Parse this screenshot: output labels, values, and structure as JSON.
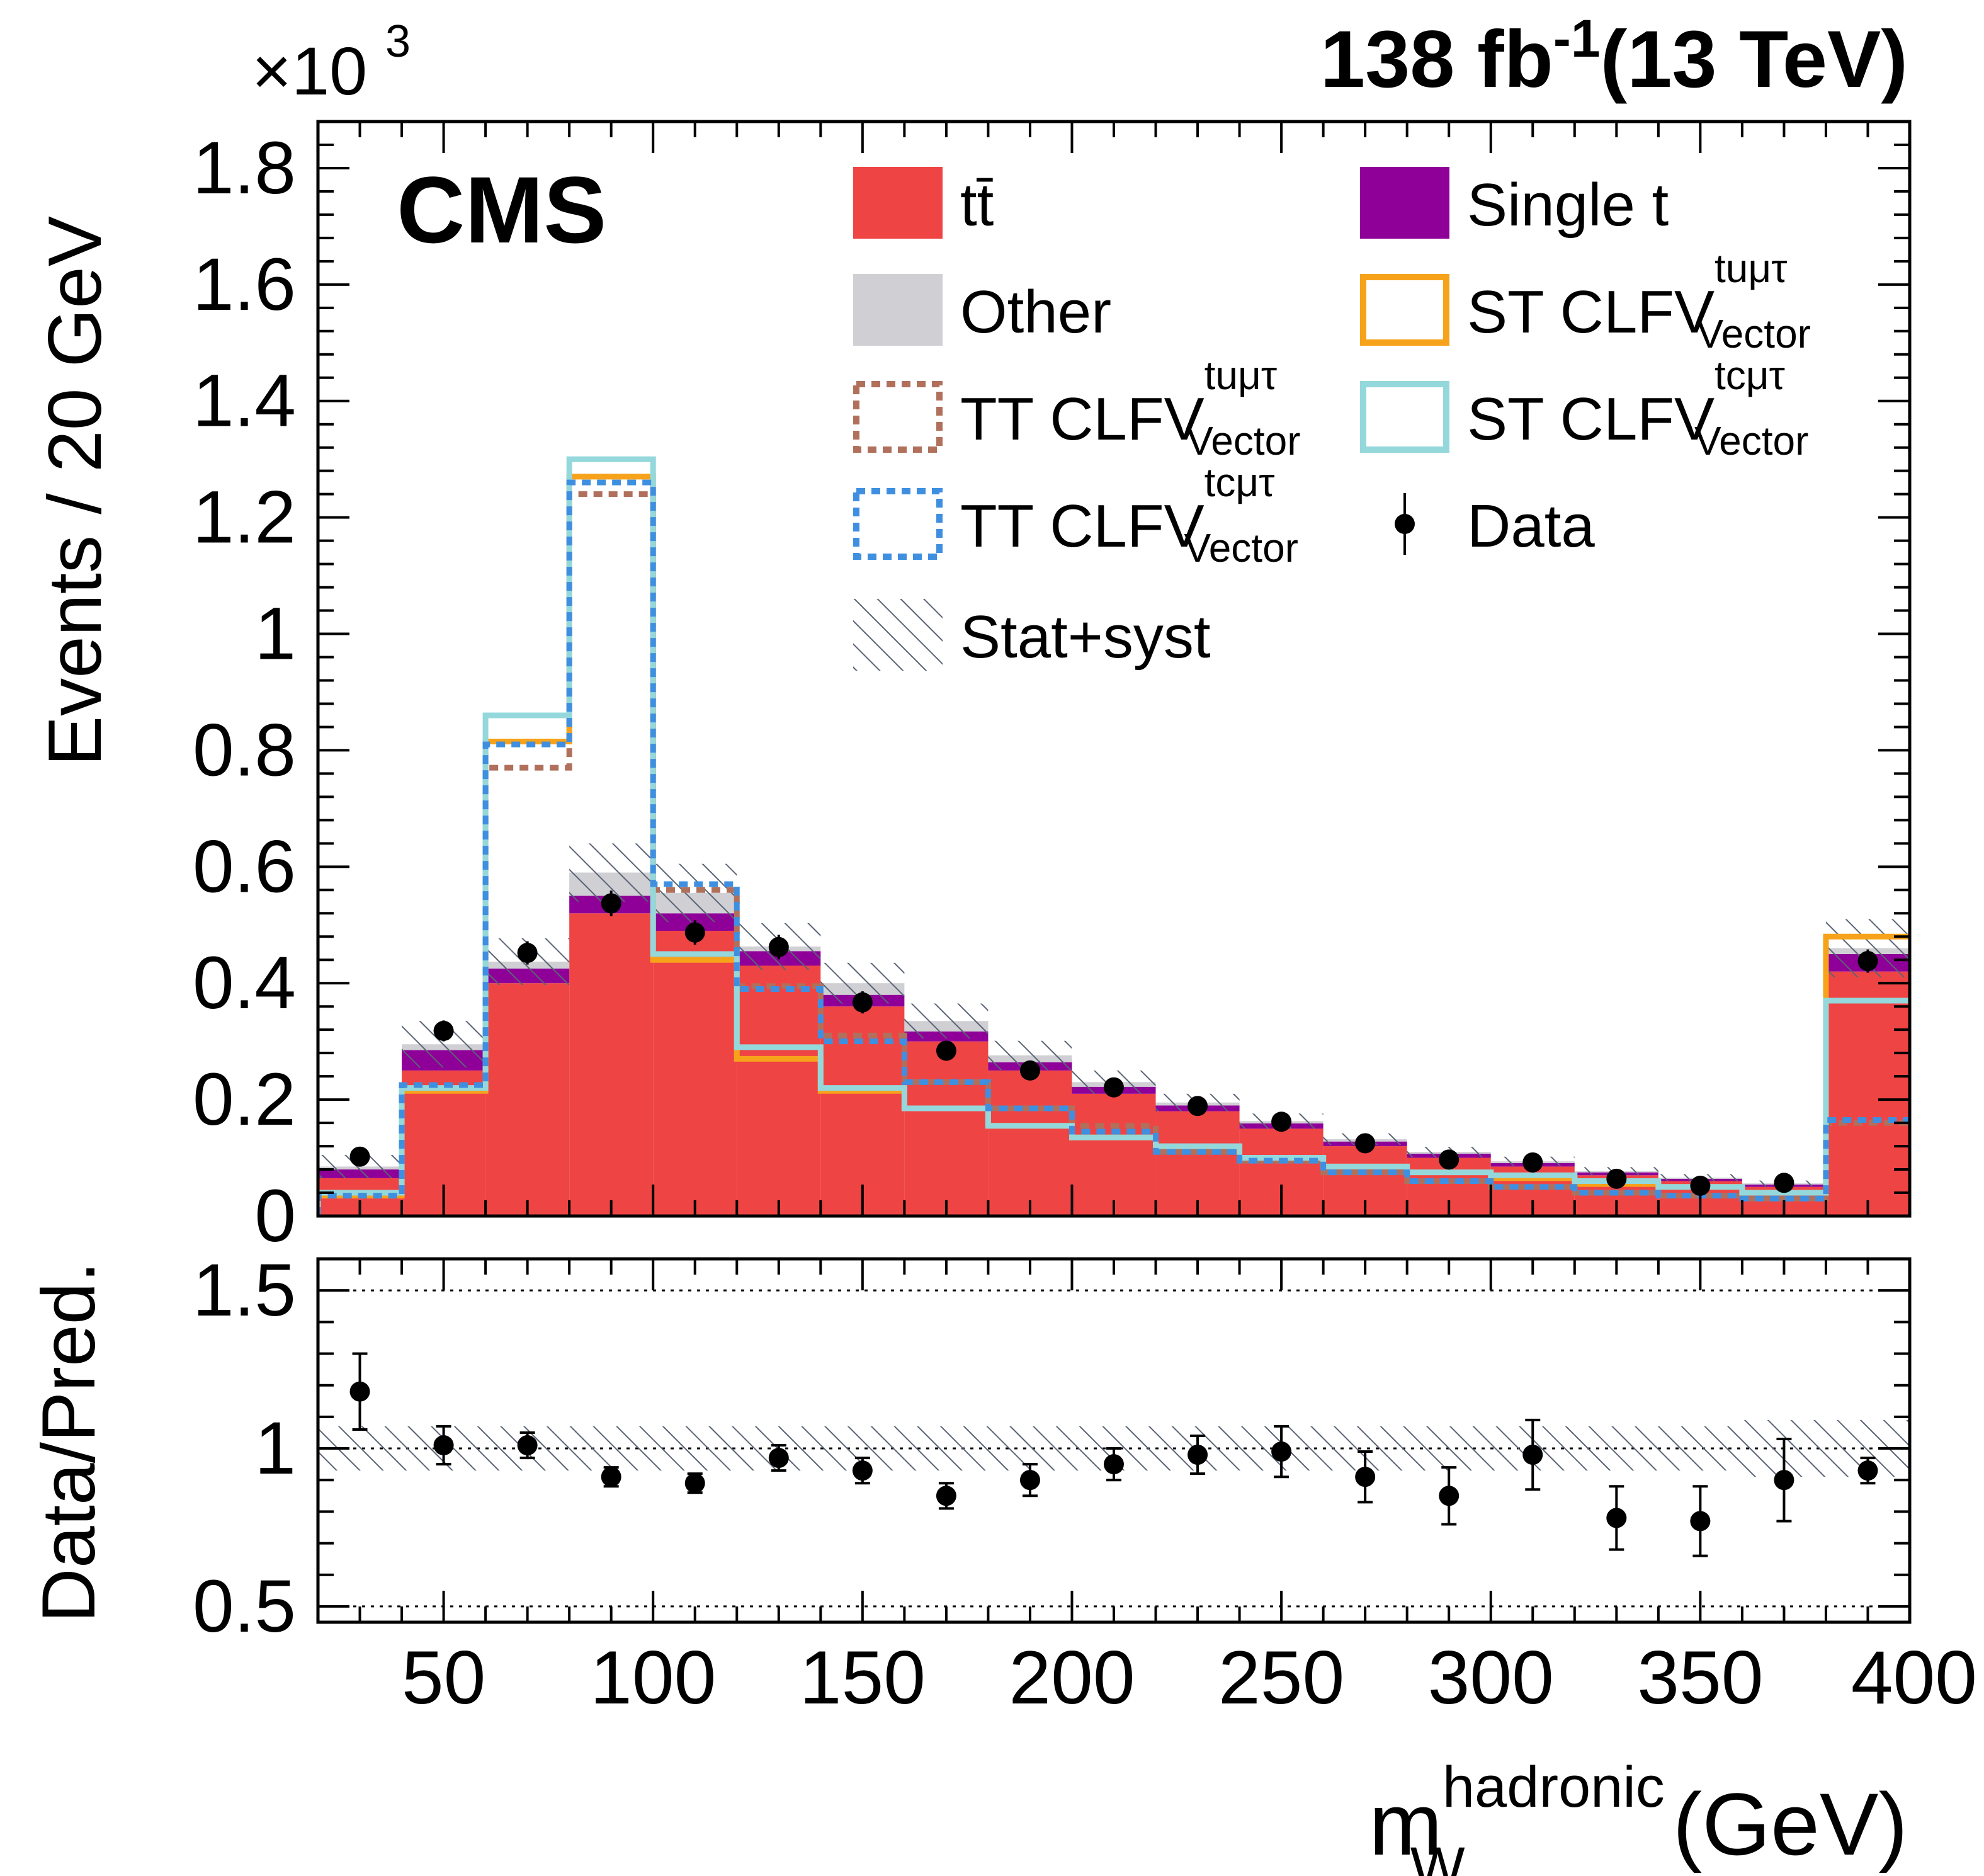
{
  "header": {
    "lumi": "138 fb",
    "lumi_exp": "-1",
    "energy": "(13 TeV)",
    "experiment": "CMS",
    "y_multiplier": "×10",
    "y_multiplier_exp": "3"
  },
  "legend": [
    {
      "key": "ttbar",
      "label": "tt̄",
      "sup": "",
      "sub": "",
      "style": "fill",
      "color": "#ef4444"
    },
    {
      "key": "single_t",
      "label": "Single t",
      "sup": "",
      "sub": "",
      "style": "fill",
      "color": "#8f0098"
    },
    {
      "key": "other",
      "label": "Other",
      "sup": "",
      "sub": "",
      "style": "fill",
      "color": "#cfcfd4"
    },
    {
      "key": "st_tu",
      "label": "ST CLFV",
      "sup": "tuμτ",
      "sub": "Vector",
      "style": "line",
      "color": "#f7a21b"
    },
    {
      "key": "tt_tu",
      "label": "TT CLFV",
      "sup": "tuμτ",
      "sub": "Vector",
      "style": "dotted",
      "color": "#b0705c"
    },
    {
      "key": "st_tc",
      "label": "ST CLFV",
      "sup": "tcμτ",
      "sub": "Vector",
      "style": "line",
      "color": "#94d8dc"
    },
    {
      "key": "tt_tc",
      "label": "TT CLFV",
      "sup": "tcμτ",
      "sub": "Vector",
      "style": "dotted",
      "color": "#3f8fe0"
    },
    {
      "key": "data",
      "label": "Data",
      "sup": "",
      "sub": "",
      "style": "marker",
      "color": "#000000"
    },
    {
      "key": "unc",
      "label": "Stat+syst",
      "sup": "",
      "sub": "",
      "style": "hatch",
      "color": "#5a6475"
    }
  ],
  "chart_data": [
    {
      "type": "bar",
      "stacked": true,
      "ylabel": "Events / 20 GeV",
      "ylim": [
        0,
        1.88
      ],
      "yticks": [
        "0",
        "0.2",
        "0.4",
        "0.6",
        "0.8",
        "1",
        "1.2",
        "1.4",
        "1.6",
        "1.8"
      ],
      "xlim": [
        20,
        400
      ],
      "bin_edges": [
        20,
        40,
        60,
        80,
        100,
        120,
        140,
        160,
        180,
        200,
        220,
        240,
        260,
        280,
        300,
        320,
        340,
        360,
        380,
        400
      ],
      "stack": [
        {
          "name": "tt̄",
          "values": [
            0.065,
            0.25,
            0.4,
            0.52,
            0.49,
            0.43,
            0.36,
            0.3,
            0.25,
            0.21,
            0.18,
            0.15,
            0.12,
            0.1,
            0.085,
            0.07,
            0.06,
            0.05,
            0.42
          ]
        },
        {
          "name": "Single t",
          "values": [
            0.015,
            0.035,
            0.025,
            0.03,
            0.03,
            0.025,
            0.02,
            0.017,
            0.014,
            0.012,
            0.01,
            0.009,
            0.008,
            0.007,
            0.006,
            0.005,
            0.004,
            0.004,
            0.03
          ]
        },
        {
          "name": "Other",
          "values": [
            0.005,
            0.01,
            0.012,
            0.04,
            0.035,
            0.008,
            0.02,
            0.018,
            0.012,
            0.008,
            0.005,
            0.004,
            0.004,
            0.003,
            0.003,
            0.002,
            0.002,
            0.002,
            0.01
          ]
        }
      ],
      "uncertainty_band": [
        0.02,
        0.04,
        0.04,
        0.05,
        0.05,
        0.04,
        0.035,
        0.03,
        0.025,
        0.02,
        0.015,
        0.013,
        0.01,
        0.009,
        0.008,
        0.007,
        0.006,
        0.005,
        0.05
      ],
      "signals": [
        {
          "name": "ST CLFV tuμτ Vector",
          "values": [
            0.035,
            0.215,
            0.815,
            1.27,
            0.44,
            0.27,
            0.215,
            0.185,
            0.155,
            0.135,
            0.115,
            0.1,
            0.085,
            0.075,
            0.065,
            0.055,
            0.05,
            0.04,
            0.48
          ]
        },
        {
          "name": "TT CLFV tuμτ Vector",
          "values": [
            0.035,
            0.22,
            0.77,
            1.24,
            0.56,
            0.395,
            0.31,
            0.23,
            0.185,
            0.155,
            0.11,
            0.095,
            0.075,
            0.06,
            0.05,
            0.04,
            0.035,
            0.03,
            0.16
          ]
        },
        {
          "name": "ST CLFV tcμτ Vector",
          "values": [
            0.04,
            0.22,
            0.86,
            1.3,
            0.45,
            0.29,
            0.22,
            0.185,
            0.155,
            0.135,
            0.12,
            0.1,
            0.085,
            0.075,
            0.07,
            0.06,
            0.05,
            0.04,
            0.37
          ]
        },
        {
          "name": "TT CLFV tcμτ Vector",
          "values": [
            0.035,
            0.225,
            0.81,
            1.26,
            0.57,
            0.39,
            0.3,
            0.23,
            0.185,
            0.145,
            0.11,
            0.095,
            0.075,
            0.06,
            0.05,
            0.04,
            0.035,
            0.03,
            0.165
          ]
        }
      ],
      "data": {
        "x": [
          30,
          50,
          70,
          90,
          110,
          130,
          150,
          170,
          190,
          210,
          230,
          250,
          270,
          290,
          310,
          330,
          350,
          370,
          390
        ],
        "values": [
          0.102,
          0.318,
          0.452,
          0.537,
          0.487,
          0.462,
          0.367,
          0.284,
          0.25,
          0.221,
          0.189,
          0.162,
          0.125,
          0.097,
          0.092,
          0.064,
          0.052,
          0.057,
          0.438
        ],
        "errors": [
          0.01,
          0.018,
          0.02,
          0.022,
          0.021,
          0.021,
          0.019,
          0.017,
          0.016,
          0.015,
          0.014,
          0.013,
          0.011,
          0.01,
          0.01,
          0.008,
          0.007,
          0.008,
          0.02
        ]
      }
    },
    {
      "type": "scatter",
      "xlabel": "m",
      "xlabel_sup": "hadronic",
      "xlabel_sub": "W",
      "xlabel_unit": "(GeV)",
      "ylabel": "Data/Pred.",
      "ylim": [
        0.45,
        1.6
      ],
      "yticks": [
        "0.5",
        "1",
        "1.5"
      ],
      "xlim": [
        20,
        400
      ],
      "xticks": [
        "50",
        "100",
        "150",
        "200",
        "250",
        "300",
        "350",
        "400"
      ],
      "reference_lines": [
        0.5,
        1.0,
        1.5
      ],
      "band_halfwidth": [
        0.07,
        0.07,
        0.07,
        0.07,
        0.07,
        0.07,
        0.07,
        0.07,
        0.07,
        0.07,
        0.07,
        0.07,
        0.07,
        0.07,
        0.07,
        0.07,
        0.07,
        0.09,
        0.09
      ],
      "x": [
        30,
        50,
        70,
        90,
        110,
        130,
        150,
        170,
        190,
        210,
        230,
        250,
        270,
        290,
        310,
        330,
        350,
        370,
        390
      ],
      "values": [
        1.18,
        1.01,
        1.01,
        0.91,
        0.89,
        0.97,
        0.93,
        0.85,
        0.9,
        0.95,
        0.98,
        0.99,
        0.91,
        0.85,
        0.98,
        0.78,
        0.77,
        0.9,
        0.93
      ],
      "errors": [
        0.12,
        0.06,
        0.04,
        0.03,
        0.03,
        0.04,
        0.04,
        0.04,
        0.05,
        0.05,
        0.06,
        0.08,
        0.08,
        0.09,
        0.11,
        0.1,
        0.11,
        0.13,
        0.04
      ]
    }
  ]
}
